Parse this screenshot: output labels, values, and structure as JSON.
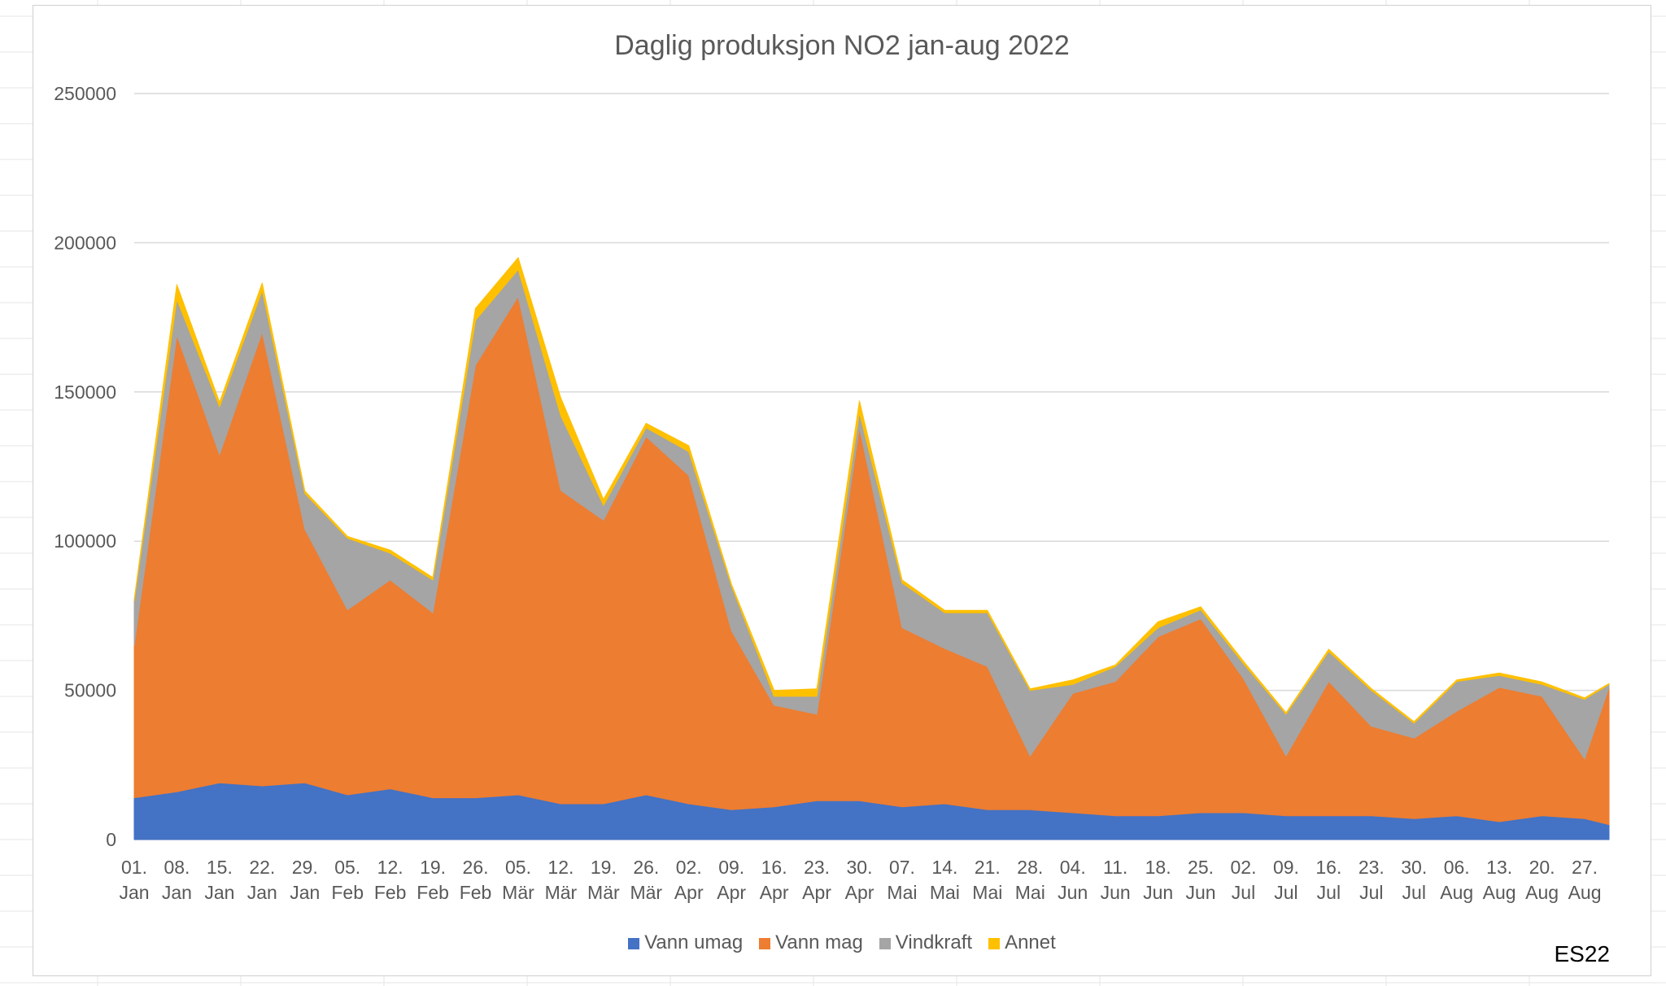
{
  "chart_data": {
    "type": "area",
    "stacked": true,
    "title": "Daglig produksjon NO2 jan-aug 2022",
    "xlabel": "",
    "ylabel": "",
    "ylim": [
      0,
      250000
    ],
    "yticks": [
      "0",
      "50000",
      "100000",
      "150000",
      "200000",
      "250000"
    ],
    "x_range": [
      "2022-01-01",
      "2022-08-31"
    ],
    "x_tick_labels": [
      [
        "01.",
        "Jan"
      ],
      [
        "08.",
        "Jan"
      ],
      [
        "15.",
        "Jan"
      ],
      [
        "22.",
        "Jan"
      ],
      [
        "29.",
        "Jan"
      ],
      [
        "05.",
        "Feb"
      ],
      [
        "12.",
        "Feb"
      ],
      [
        "19.",
        "Feb"
      ],
      [
        "26.",
        "Feb"
      ],
      [
        "05.",
        "Mär"
      ],
      [
        "12.",
        "Mär"
      ],
      [
        "19.",
        "Mär"
      ],
      [
        "26.",
        "Mär"
      ],
      [
        "02.",
        "Apr"
      ],
      [
        "09.",
        "Apr"
      ],
      [
        "16.",
        "Apr"
      ],
      [
        "23.",
        "Apr"
      ],
      [
        "30.",
        "Apr"
      ],
      [
        "07.",
        "Mai"
      ],
      [
        "14.",
        "Mai"
      ],
      [
        "21.",
        "Mai"
      ],
      [
        "28.",
        "Mai"
      ],
      [
        "04.",
        "Jun"
      ],
      [
        "11.",
        "Jun"
      ],
      [
        "18.",
        "Jun"
      ],
      [
        "25.",
        "Jun"
      ],
      [
        "02.",
        "Jul"
      ],
      [
        "09.",
        "Jul"
      ],
      [
        "16.",
        "Jul"
      ],
      [
        "23.",
        "Jul"
      ],
      [
        "30.",
        "Jul"
      ],
      [
        "06.",
        "Aug"
      ],
      [
        "13.",
        "Aug"
      ],
      [
        "20.",
        "Aug"
      ],
      [
        "27.",
        "Aug"
      ]
    ],
    "grid": true,
    "legend_position": "bottom",
    "series": [
      {
        "name": "Vann umag",
        "color": "#4472C4",
        "x": [
          "2022-01-01",
          "2022-01-08",
          "2022-01-15",
          "2022-01-22",
          "2022-01-29",
          "2022-02-05",
          "2022-02-12",
          "2022-02-19",
          "2022-02-26",
          "2022-03-05",
          "2022-03-12",
          "2022-03-19",
          "2022-03-26",
          "2022-04-02",
          "2022-04-09",
          "2022-04-16",
          "2022-04-23",
          "2022-04-30",
          "2022-05-07",
          "2022-05-14",
          "2022-05-21",
          "2022-05-28",
          "2022-06-04",
          "2022-06-11",
          "2022-06-18",
          "2022-06-25",
          "2022-07-02",
          "2022-07-09",
          "2022-07-16",
          "2022-07-23",
          "2022-07-30",
          "2022-08-06",
          "2022-08-13",
          "2022-08-20",
          "2022-08-27",
          "2022-08-31"
        ],
        "values": [
          14000,
          16000,
          19000,
          18000,
          19000,
          15000,
          17000,
          14000,
          14000,
          15000,
          12000,
          12000,
          15000,
          12000,
          10000,
          11000,
          13000,
          13000,
          11000,
          12000,
          10000,
          10000,
          9000,
          8000,
          8000,
          9000,
          9000,
          8000,
          8000,
          8000,
          7000,
          8000,
          6000,
          8000,
          7000,
          5000
        ]
      },
      {
        "name": "Vann mag",
        "color": "#ED7D31",
        "x": [
          "2022-01-01",
          "2022-01-08",
          "2022-01-15",
          "2022-01-22",
          "2022-01-29",
          "2022-02-05",
          "2022-02-12",
          "2022-02-19",
          "2022-02-26",
          "2022-03-05",
          "2022-03-12",
          "2022-03-19",
          "2022-03-26",
          "2022-04-02",
          "2022-04-09",
          "2022-04-16",
          "2022-04-23",
          "2022-04-30",
          "2022-05-07",
          "2022-05-14",
          "2022-05-21",
          "2022-05-28",
          "2022-06-04",
          "2022-06-11",
          "2022-06-18",
          "2022-06-25",
          "2022-07-02",
          "2022-07-09",
          "2022-07-16",
          "2022-07-23",
          "2022-07-30",
          "2022-08-06",
          "2022-08-13",
          "2022-08-20",
          "2022-08-27",
          "2022-08-31"
        ],
        "values": [
          51000,
          153000,
          110000,
          152000,
          85000,
          62000,
          70000,
          62000,
          145000,
          167000,
          105000,
          95000,
          120000,
          110000,
          60000,
          34000,
          29000,
          125000,
          60000,
          52000,
          48000,
          18000,
          40000,
          45000,
          60000,
          65000,
          45000,
          20000,
          45000,
          30000,
          27000,
          35000,
          45000,
          40000,
          20000,
          46000
        ]
      },
      {
        "name": "Vindkraft",
        "color": "#A5A5A5",
        "x": [
          "2022-01-01",
          "2022-01-08",
          "2022-01-15",
          "2022-01-22",
          "2022-01-29",
          "2022-02-05",
          "2022-02-12",
          "2022-02-19",
          "2022-02-26",
          "2022-03-05",
          "2022-03-12",
          "2022-03-19",
          "2022-03-26",
          "2022-04-02",
          "2022-04-09",
          "2022-04-16",
          "2022-04-23",
          "2022-04-30",
          "2022-05-07",
          "2022-05-14",
          "2022-05-21",
          "2022-05-28",
          "2022-06-04",
          "2022-06-11",
          "2022-06-18",
          "2022-06-25",
          "2022-07-02",
          "2022-07-09",
          "2022-07-16",
          "2022-07-23",
          "2022-07-30",
          "2022-08-06",
          "2022-08-13",
          "2022-08-20",
          "2022-08-27",
          "2022-08-31"
        ],
        "values": [
          15000,
          12000,
          16000,
          14000,
          12000,
          24000,
          9000,
          11000,
          15000,
          9000,
          25000,
          5000,
          3000,
          8000,
          15000,
          3000,
          6000,
          5000,
          15000,
          12000,
          18000,
          22000,
          3000,
          5000,
          3000,
          3000,
          5000,
          14000,
          10000,
          12000,
          5000,
          10000,
          4000,
          4000,
          20000,
          1000
        ]
      },
      {
        "name": "Annet",
        "color": "#FFC000",
        "x": [
          "2022-01-01",
          "2022-01-08",
          "2022-01-15",
          "2022-01-22",
          "2022-01-29",
          "2022-02-05",
          "2022-02-12",
          "2022-02-19",
          "2022-02-26",
          "2022-03-05",
          "2022-03-12",
          "2022-03-19",
          "2022-03-26",
          "2022-04-02",
          "2022-04-09",
          "2022-04-16",
          "2022-04-23",
          "2022-04-30",
          "2022-05-07",
          "2022-05-14",
          "2022-05-21",
          "2022-05-28",
          "2022-06-04",
          "2022-06-11",
          "2022-06-18",
          "2022-06-25",
          "2022-07-02",
          "2022-07-09",
          "2022-07-16",
          "2022-07-23",
          "2022-07-30",
          "2022-08-06",
          "2022-08-13",
          "2022-08-20",
          "2022-08-27",
          "2022-08-31"
        ],
        "values": [
          500,
          5000,
          1500,
          2500,
          800,
          600,
          1000,
          800,
          4000,
          4000,
          6000,
          2000,
          1500,
          2000,
          600,
          2000,
          2500,
          4000,
          1000,
          800,
          800,
          500,
          1500,
          500,
          2000,
          1000,
          800,
          500,
          800,
          600,
          500,
          500,
          800,
          800,
          500,
          300
        ]
      }
    ]
  },
  "watermark": "ES22"
}
